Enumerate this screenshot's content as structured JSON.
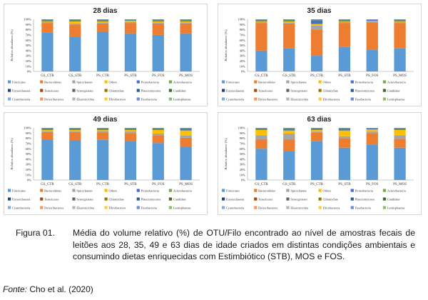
{
  "colors": {
    "Firmicutes": "#5b9bd5",
    "Bacteroidetes": "#ed7d31",
    "Spirochaetes": "#a5a5a5",
    "Others": "#ffc000",
    "Proteobacteria": "#4472c4",
    "Actinobacteria": "#70ad47",
    "Euryarchaeota": "#264478",
    "Tenericutes": "#9e480e",
    "Synergistetes": "#636363",
    "Chlamydiae": "#997300",
    "Planctomycetes": "#255e91",
    "Candidate": "#43682b",
    "Cyanobacteria": "#7cafdd",
    "Deferribacteres": "#f1975a",
    "Elusimicrobia": "#b7b7b7",
    "Fibrobacteres": "#ffcd33",
    "Fusobacteria": "#698ed0",
    "Lentisphaerae": "#8cc168"
  },
  "chart_data": [
    {
      "type": "bar",
      "title": "28 dias",
      "ylabel": "Relative abundance (%)",
      "yticks": [
        "0%",
        "10%",
        "20%",
        "30%",
        "40%",
        "50%",
        "60%",
        "70%",
        "80%",
        "90%",
        "100%"
      ],
      "categories": [
        "GS_CTR",
        "GS_STB",
        "PS_CTR",
        "PS_STB",
        "PS_FOS",
        "PS_MOS"
      ],
      "series": [
        {
          "name": "Firmicutes",
          "values": [
            75,
            67,
            76,
            73,
            70,
            73
          ]
        },
        {
          "name": "Bacteroidetes",
          "values": [
            18,
            23,
            16,
            20,
            22,
            19
          ]
        },
        {
          "name": "Spirochaetes",
          "values": [
            2,
            2,
            2,
            2,
            2,
            2
          ]
        },
        {
          "name": "Others",
          "values": [
            1,
            4,
            2,
            2,
            2,
            2
          ]
        },
        {
          "name": "Proteobacteria",
          "values": [
            2,
            2,
            2,
            1,
            2,
            2
          ]
        },
        {
          "name": "Actinobacteria",
          "values": [
            2,
            2,
            2,
            2,
            2,
            2
          ]
        }
      ]
    },
    {
      "type": "bar",
      "title": "35 dias",
      "ylabel": "Relative abundance (%)",
      "yticks": [
        "0%",
        "10%",
        "20%",
        "30%",
        "40%",
        "50%",
        "60%",
        "70%",
        "80%",
        "90%",
        "100%"
      ],
      "categories": [
        "GS_CTR",
        "GS_STB",
        "PS_CTR",
        "PS_STB",
        "PS_FOS",
        "PS_MOS"
      ],
      "series": [
        {
          "name": "Firmicutes",
          "values": [
            40,
            44,
            30,
            47,
            42,
            44
          ]
        },
        {
          "name": "Bacteroidetes",
          "values": [
            53,
            48,
            50,
            46,
            52,
            49
          ]
        },
        {
          "name": "Spirochaetes",
          "values": [
            2,
            2,
            8,
            2,
            2,
            2
          ]
        },
        {
          "name": "Others",
          "values": [
            1,
            2,
            3,
            1,
            1,
            1
          ]
        },
        {
          "name": "Proteobacteria",
          "values": [
            2,
            2,
            7,
            2,
            2,
            2
          ]
        },
        {
          "name": "Actinobacteria",
          "values": [
            2,
            2,
            2,
            2,
            1,
            2
          ]
        }
      ]
    },
    {
      "type": "bar",
      "title": "49 dias",
      "ylabel": "Relative abundance (%)",
      "yticks": [
        "0%",
        "10%",
        "20%",
        "30%",
        "40%",
        "50%",
        "60%",
        "70%",
        "80%",
        "90%",
        "100%"
      ],
      "categories": [
        "GS_CTR",
        "GS_STB",
        "PS_CTR",
        "PS_STB",
        "PS_FOS",
        "PS_MOS"
      ],
      "series": [
        {
          "name": "Firmicutes",
          "values": [
            78,
            76,
            77,
            74,
            71,
            63
          ]
        },
        {
          "name": "Bacteroidetes",
          "values": [
            14,
            16,
            14,
            16,
            15,
            18
          ]
        },
        {
          "name": "Spirochaetes",
          "values": [
            2,
            2,
            3,
            3,
            3,
            4
          ]
        },
        {
          "name": "Others",
          "values": [
            2,
            2,
            2,
            3,
            7,
            10
          ]
        },
        {
          "name": "Proteobacteria",
          "values": [
            2,
            2,
            2,
            2,
            2,
            3
          ]
        },
        {
          "name": "Actinobacteria",
          "values": [
            2,
            2,
            2,
            2,
            2,
            2
          ]
        }
      ]
    },
    {
      "type": "bar",
      "title": "63 dias",
      "ylabel": "Relative abundance (%)",
      "yticks": [
        "0%",
        "10%",
        "20%",
        "30%",
        "40%",
        "50%",
        "60%",
        "70%",
        "80%",
        "90%",
        "100%"
      ],
      "categories": [
        "GS_CTR",
        "GS_STB",
        "PS_CTR",
        "PS_STB",
        "PS_FOS",
        "PS_MOS"
      ],
      "series": [
        {
          "name": "Firmicutes",
          "values": [
            60,
            56,
            75,
            62,
            68,
            62
          ]
        },
        {
          "name": "Bacteroidetes",
          "values": [
            18,
            22,
            16,
            18,
            22,
            17
          ]
        },
        {
          "name": "Spirochaetes",
          "values": [
            8,
            11,
            2,
            4,
            3,
            7
          ]
        },
        {
          "name": "Others",
          "values": [
            10,
            6,
            3,
            11,
            4,
            10
          ]
        },
        {
          "name": "Proteobacteria",
          "values": [
            2,
            3,
            2,
            3,
            2,
            2
          ]
        },
        {
          "name": "Actinobacteria",
          "values": [
            2,
            2,
            2,
            2,
            1,
            2
          ]
        }
      ]
    }
  ],
  "legend_rows": [
    [
      "Firmicutes",
      "Bacteroidetes",
      "Spirochaetes",
      "Others",
      "Proteobacteria",
      "Actinobacteria"
    ],
    [
      "Euryarchaeota",
      "Tenericutes",
      "Synergistetes",
      "Chlamydiae",
      "Planctomycetes",
      "Candidate"
    ],
    [
      "Cyanobacteria",
      "Deferribacteres",
      "Elusimicrobia",
      "Fibrobacteres",
      "Fusobacteria",
      "Lentisphaerae"
    ]
  ],
  "caption": {
    "label": "Figura 01.",
    "text": "Média do volume relativo (%) de OTU/Filo encontrado ao nível de amostras fecais de leitões aos 28, 35, 49 e 63 dias de idade criados em distintas condições ambientais e consumindo dietas enriquecidas com Estimbiótico (STB), MOS e FOS."
  },
  "source": {
    "label": "Fonte:",
    "text": "Cho et al. (2020)"
  }
}
